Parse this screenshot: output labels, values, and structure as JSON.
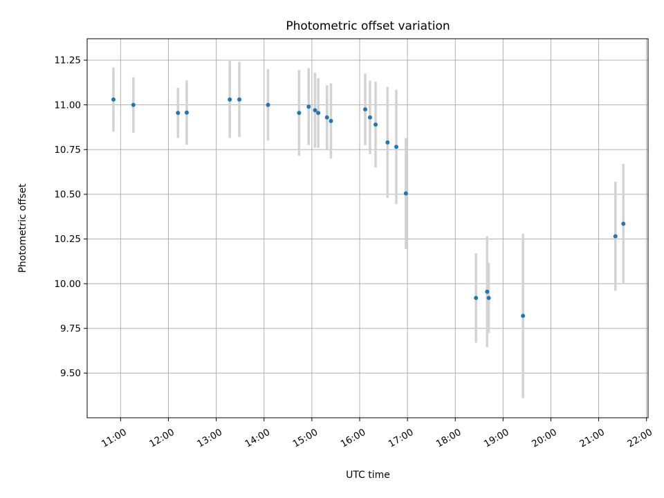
{
  "chart_data": {
    "type": "scatter",
    "title": "Photometric offset variation",
    "xlabel": "UTC time",
    "ylabel": "Photometric offset",
    "x_ticks": [
      "11:00",
      "12:00",
      "13:00",
      "14:00",
      "15:00",
      "16:00",
      "17:00",
      "18:00",
      "19:00",
      "20:00",
      "21:00",
      "22:00"
    ],
    "y_ticks": [
      "9.50",
      "9.75",
      "10.00",
      "10.25",
      "10.50",
      "10.75",
      "11.00",
      "11.25"
    ],
    "xlim": [
      "10:18",
      "22:02"
    ],
    "ylim": [
      9.25,
      11.37
    ],
    "grid": true,
    "point_color": "#1f77b4",
    "errorbar_color": "#d3d3d3",
    "points": [
      {
        "x": "10:51",
        "y": 11.03,
        "err": 0.18
      },
      {
        "x": "11:16",
        "y": 11.0,
        "err": 0.155
      },
      {
        "x": "12:12",
        "y": 10.955,
        "err": 0.14
      },
      {
        "x": "12:23",
        "y": 10.957,
        "err": 0.18
      },
      {
        "x": "13:17",
        "y": 11.03,
        "err": 0.215
      },
      {
        "x": "13:29",
        "y": 11.03,
        "err": 0.21
      },
      {
        "x": "14:05",
        "y": 11.0,
        "err": 0.2
      },
      {
        "x": "14:44",
        "y": 10.955,
        "err": 0.24
      },
      {
        "x": "14:56",
        "y": 10.99,
        "err": 0.215
      },
      {
        "x": "15:04",
        "y": 10.97,
        "err": 0.21
      },
      {
        "x": "15:08",
        "y": 10.955,
        "err": 0.195
      },
      {
        "x": "15:19",
        "y": 10.93,
        "err": 0.18
      },
      {
        "x": "15:24",
        "y": 10.91,
        "err": 0.21
      },
      {
        "x": "16:07",
        "y": 10.975,
        "err": 0.2
      },
      {
        "x": "16:13",
        "y": 10.93,
        "err": 0.205
      },
      {
        "x": "16:20",
        "y": 10.89,
        "err": 0.24
      },
      {
        "x": "16:35",
        "y": 10.79,
        "err": 0.31
      },
      {
        "x": "16:46",
        "y": 10.765,
        "err": 0.32
      },
      {
        "x": "16:58",
        "y": 10.505,
        "err": 0.31
      },
      {
        "x": "18:26",
        "y": 9.92,
        "err": 0.25
      },
      {
        "x": "18:40",
        "y": 9.955,
        "err": 0.31
      },
      {
        "x": "18:42",
        "y": 9.92,
        "err": 0.195
      },
      {
        "x": "19:25",
        "y": 9.82,
        "err": 0.46
      },
      {
        "x": "21:21",
        "y": 10.265,
        "err": 0.305
      },
      {
        "x": "21:31",
        "y": 10.335,
        "err": 0.335
      }
    ]
  }
}
